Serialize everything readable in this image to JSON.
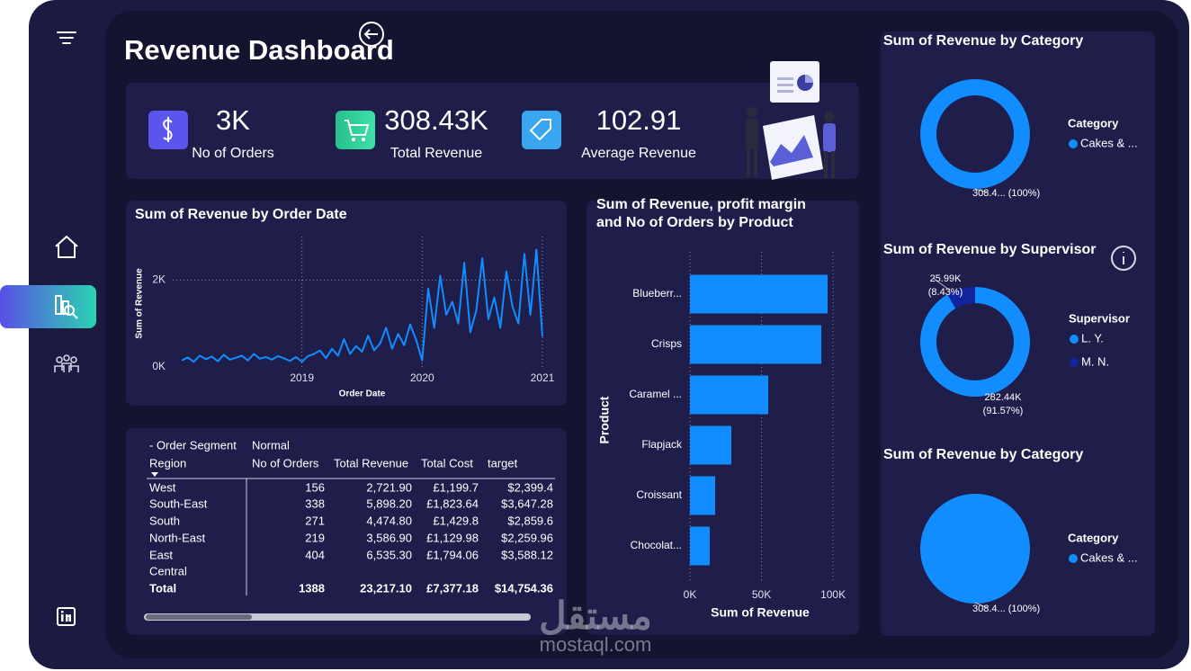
{
  "header": {
    "title": "Revenue Dashboard"
  },
  "kpis": [
    {
      "value": "3K",
      "label": "No of Orders"
    },
    {
      "value": "308.43K",
      "label": "Total Revenue"
    },
    {
      "value": "102.91",
      "label": "Average Revenue"
    }
  ],
  "table": {
    "header": [
      "- Order Segment",
      "Normal"
    ],
    "columns": [
      "Region",
      "No of Orders",
      "Total Revenue",
      "Total Cost",
      "target"
    ],
    "rows": [
      [
        "West",
        "156",
        "2,721.90",
        "£1,199.7",
        "$2,399.4"
      ],
      [
        "South-East",
        "338",
        "5,898.20",
        "£1,823.64",
        "$3,647.28"
      ],
      [
        "South",
        "271",
        "4,474.80",
        "£1,429.8",
        "$2,859.6"
      ],
      [
        "North-East",
        "219",
        "3,586.90",
        "£1,129.98",
        "$2,259.96"
      ],
      [
        "East",
        "404",
        "6,535.30",
        "£1,794.06",
        "$3,588.12"
      ],
      [
        "Central",
        null,
        null,
        null,
        null
      ]
    ],
    "total": [
      "Total",
      "1388",
      "23,217.10",
      "£7,377.18",
      "$14,754.36"
    ]
  },
  "watermark": {
    "logo": "مستقل",
    "url": "mostaql.com"
  },
  "chart_data": [
    {
      "type": "line",
      "title": "Sum of Revenue by Order Date",
      "x_label": "Order Date",
      "y_label": "Sum of Revenue",
      "color": "#118dff",
      "x": [
        2018,
        2018.05,
        2018.1,
        2018.15,
        2018.2,
        2018.25,
        2018.3,
        2018.35,
        2018.4,
        2018.45,
        2018.5,
        2018.55,
        2018.6,
        2018.65,
        2018.7,
        2018.75,
        2018.8,
        2018.85,
        2018.9,
        2018.95,
        2019,
        2019.05,
        2019.1,
        2019.15,
        2019.2,
        2019.25,
        2019.3,
        2019.35,
        2019.4,
        2019.45,
        2019.5,
        2019.55,
        2019.6,
        2019.65,
        2019.7,
        2019.75,
        2019.8,
        2019.85,
        2019.9,
        2019.95,
        2020,
        2020.05,
        2020.1,
        2020.15,
        2020.2,
        2020.25,
        2020.3,
        2020.35,
        2020.4,
        2020.45,
        2020.5,
        2020.55,
        2020.6,
        2020.65,
        2020.7,
        2020.75,
        2020.8,
        2020.85,
        2020.9,
        2020.95,
        2021
      ],
      "values": [
        150,
        220,
        120,
        260,
        180,
        240,
        130,
        280,
        170,
        210,
        260,
        150,
        300,
        190,
        230,
        170,
        250,
        200,
        140,
        230,
        120,
        250,
        300,
        380,
        200,
        420,
        260,
        640,
        300,
        480,
        350,
        720,
        380,
        540,
        900,
        420,
        760,
        500,
        980,
        620,
        150,
        1800,
        900,
        2100,
        1200,
        1500,
        1000,
        2400,
        800,
        1300,
        2500,
        1100,
        1600,
        900,
        2200,
        1400,
        1000,
        2600,
        1200,
        2700,
        700
      ],
      "xlim": [
        2018,
        2021
      ],
      "xticks": [
        2019,
        2020,
        2021
      ],
      "ylim": [
        0,
        3000
      ],
      "yticks": [
        {
          "value": 0,
          "label": "0K"
        },
        {
          "value": 2000,
          "label": "2K"
        }
      ],
      "grid": true
    },
    {
      "type": "bar",
      "orientation": "horizontal",
      "title": "Sum of Revenue, profit margin and No of Orders by Product",
      "x_label": "Sum of Revenue",
      "y_label": "Product",
      "color": "#118dff",
      "categories": [
        "Blueberr...",
        "Crisps",
        "Caramel ...",
        "Flapjack",
        "Croissant",
        "Chocolat..."
      ],
      "values": [
        96200,
        91800,
        54700,
        28900,
        17600,
        13800
      ],
      "xlim": [
        0,
        110000
      ],
      "xticks": [
        {
          "value": 0,
          "label": "0K"
        },
        {
          "value": 50000,
          "label": "50K"
        },
        {
          "value": 100000,
          "label": "100K"
        }
      ],
      "grid": true
    },
    {
      "type": "donut",
      "title": "Sum of Revenue by Category",
      "legend_title": "Category",
      "categories": [
        "Cakes & ..."
      ],
      "values": [
        308430
      ],
      "value_labels": [
        "308.4... (100%)"
      ],
      "colors": [
        "#118dff"
      ]
    },
    {
      "type": "donut",
      "title": "Sum of Revenue by Supervisor",
      "legend_title": "Supervisor",
      "categories": [
        "L. Y.",
        "M. N."
      ],
      "values": [
        282440,
        25990
      ],
      "value_labels": [
        "282.44K (91.57%)",
        "25.99K (8.43%)"
      ],
      "colors": [
        "#118dff",
        "#12239e"
      ]
    },
    {
      "type": "pie",
      "title": "Sum of Revenue by Category",
      "legend_title": "Category",
      "categories": [
        "Cakes & ..."
      ],
      "values": [
        308430
      ],
      "value_labels": [
        "308.4... (100%)"
      ],
      "colors": [
        "#118dff"
      ]
    }
  ]
}
